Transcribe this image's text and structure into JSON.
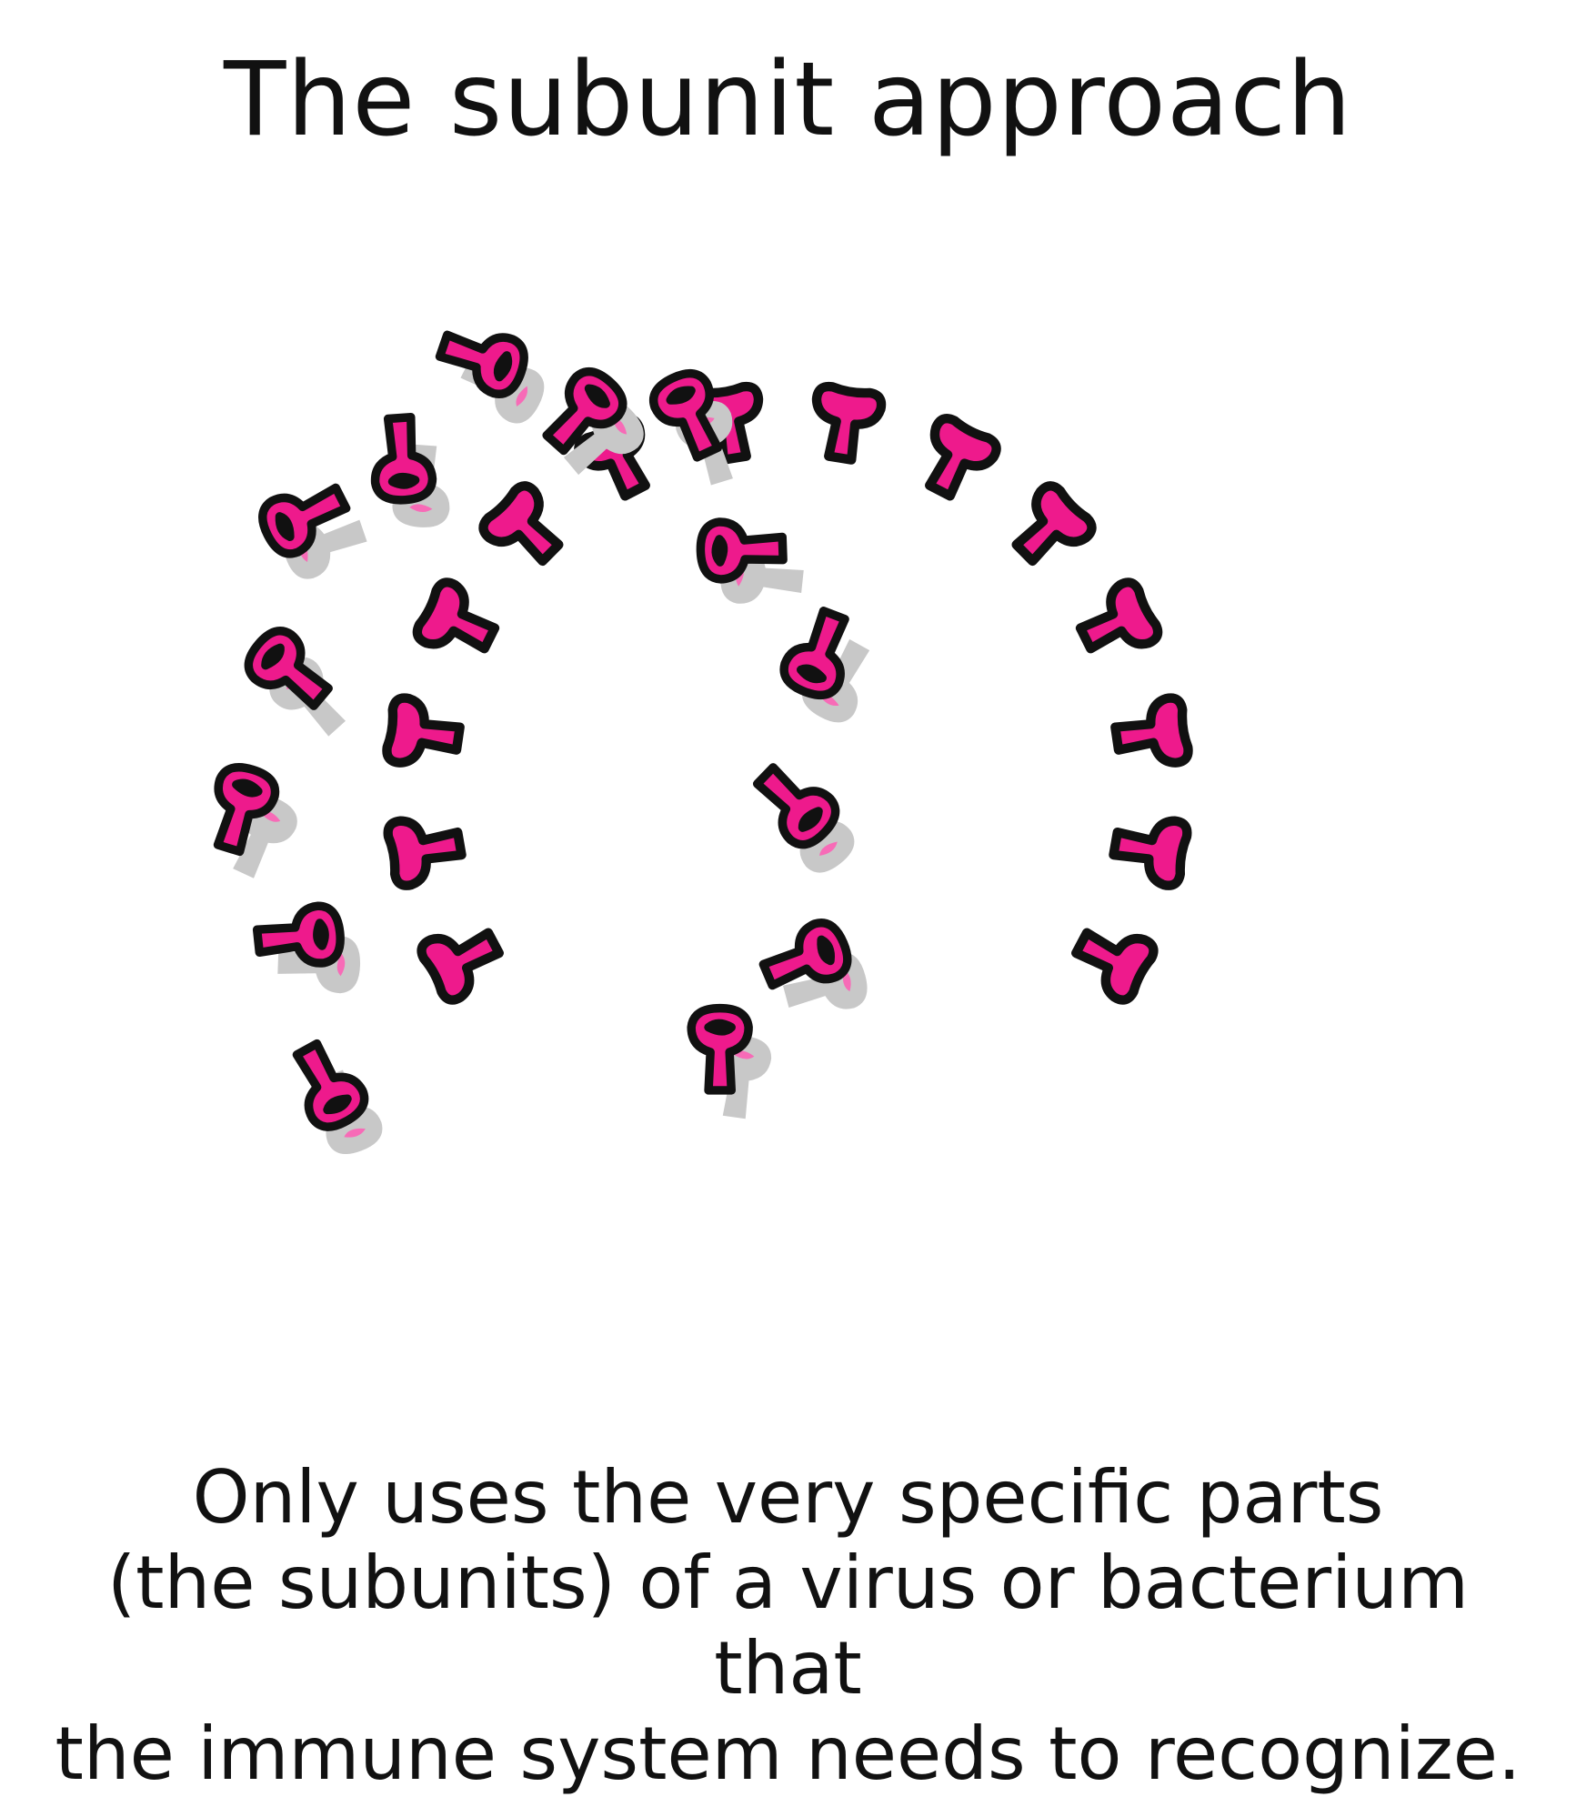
{
  "title": "The subunit approach",
  "caption": {
    "line1": "Only uses the very specific parts",
    "line2": "(the subunits) of a virus or bacterium that",
    "line3": "the immune system needs to recognize."
  },
  "colors": {
    "subunit_fill": "#ee1a8c",
    "subunit_highlight": "#f76bb7",
    "outline": "#111111",
    "shadow": "#c8c8c8",
    "background": "#ffffff"
  },
  "ring_subunit_count": 14,
  "detached_subunit_count": 14
}
